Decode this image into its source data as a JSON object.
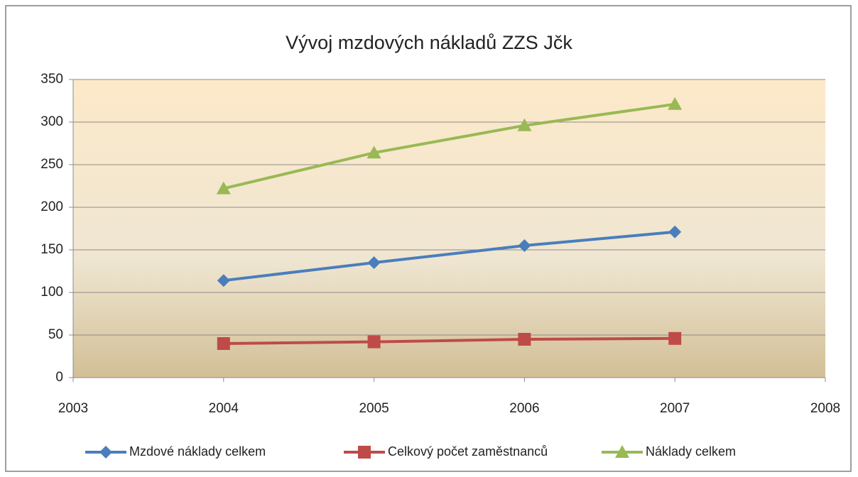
{
  "chart_data": {
    "type": "line",
    "title": "Vývoj mzdových nákladů ZZS Jčk",
    "x": [
      2004,
      2005,
      2006,
      2007
    ],
    "series": [
      {
        "name": "Mzdové náklady celkem",
        "color": "#4a7ebb",
        "marker": "diamond",
        "values": [
          114,
          135,
          155,
          171
        ]
      },
      {
        "name": "Celkový počet zaměstnanců",
        "color": "#be4b48",
        "marker": "square",
        "values": [
          40,
          42,
          45,
          46
        ]
      },
      {
        "name": "Náklady celkem",
        "color": "#98b954",
        "marker": "triangle",
        "values": [
          222,
          264,
          296,
          321
        ]
      }
    ],
    "xlim": [
      2003,
      2008
    ],
    "xticks": [
      2003,
      2004,
      2005,
      2006,
      2007,
      2008
    ],
    "ylim": [
      0,
      350
    ],
    "yticks": [
      0,
      50,
      100,
      150,
      200,
      250,
      300,
      350
    ],
    "grid": true,
    "legend": "bottom"
  }
}
